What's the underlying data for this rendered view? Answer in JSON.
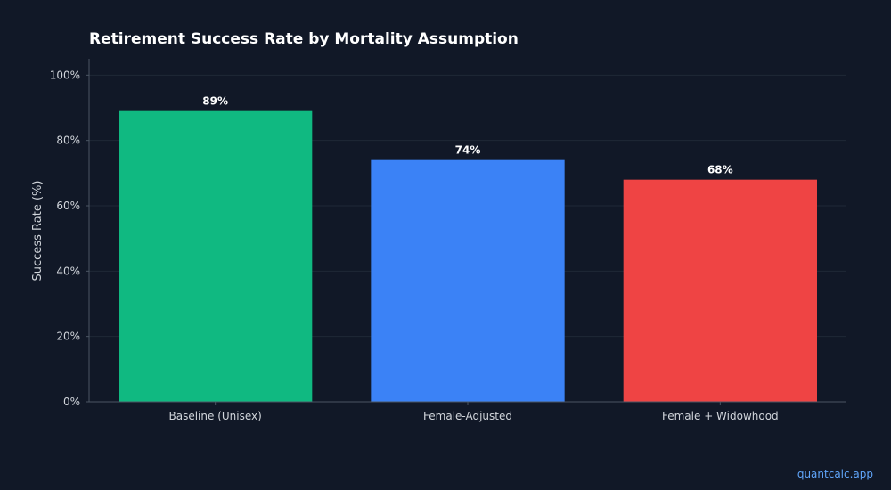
{
  "chart_data": {
    "type": "bar",
    "title": "Retirement Success Rate by Mortality Assumption",
    "xlabel": "",
    "ylabel": "Success Rate (%)",
    "categories": [
      "Baseline (Unisex)",
      "Female-Adjusted",
      "Female + Widowhood"
    ],
    "values": [
      89,
      74,
      68
    ],
    "value_labels": [
      "89%",
      "74%",
      "68%"
    ],
    "colors": [
      "#10b981",
      "#3b82f6",
      "#ef4444"
    ],
    "ylim": [
      0,
      105
    ],
    "yticks": [
      0,
      20,
      40,
      60,
      80,
      100
    ],
    "ytick_labels": [
      "0%",
      "20%",
      "40%",
      "60%",
      "80%",
      "100%"
    ],
    "grid": true,
    "legend": "none"
  },
  "theme": {
    "background": "#111827",
    "grid_color": "#1f2937",
    "axis_color": "#4b5563",
    "text_color": "#d1d5db",
    "title_color": "#ffffff"
  },
  "footer": {
    "watermark": "quantcalc.app"
  }
}
